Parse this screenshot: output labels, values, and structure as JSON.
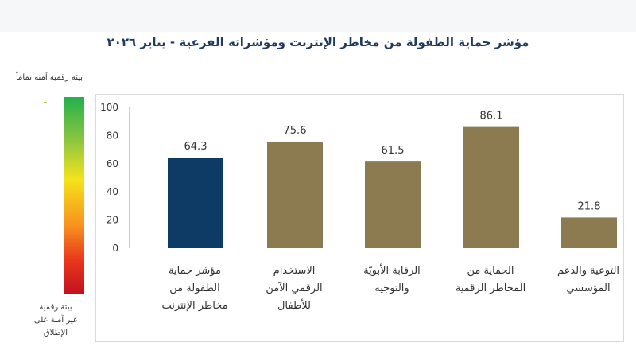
{
  "chart_data": {
    "type": "bar",
    "title": "مؤشر حماية الطفولة من مخاطر الإنترنت ومؤشراته الفرعية - يناير ٢٠٢٦",
    "categories": [
      [
        "مؤشر حماية",
        "الطفولة من",
        "مخاطر الإنترنت"
      ],
      [
        "الاستخدام",
        "الرقمي الآمن",
        "للأطفال"
      ],
      [
        "الرقابة الأبويّة",
        "والتوجيه"
      ],
      [
        "الحماية من",
        "المخاطر الرقمية"
      ],
      [
        "التوعية والدعم",
        "المؤسسي"
      ]
    ],
    "values": [
      64.3,
      75.6,
      61.5,
      86.1,
      21.8
    ],
    "value_labels": [
      "64.3",
      "75.6",
      "61.5",
      "86.1",
      "21.8"
    ],
    "bar_colors": [
      "#0d3b66",
      "#8c7a50",
      "#8c7a50",
      "#8c7a50",
      "#8c7a50"
    ],
    "ylim": [
      0,
      100
    ],
    "yticks": [
      "0",
      "20",
      "40",
      "60",
      "80",
      "100"
    ],
    "xlabel": "",
    "ylabel": "",
    "grid": false
  },
  "scale": {
    "top_label": "بيئة رقمية آمنة تماماً",
    "bottom_label": [
      "بيئة رقمية",
      "غير آمنة على",
      "الإطلاق"
    ]
  }
}
